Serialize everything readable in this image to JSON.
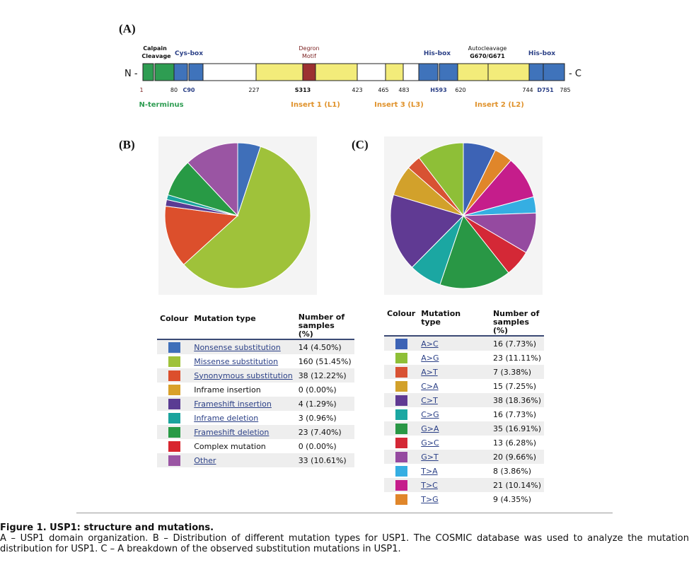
{
  "panels": {
    "a": "(A)",
    "b": "(B)",
    "c": "(C)"
  },
  "domain": {
    "n_label": "N -",
    "c_label": "- C",
    "top_labels": {
      "calpain_1": "Calpain",
      "calpain_2": "Cleavage",
      "cysbox": "Cys-box",
      "degron_1": "Degron",
      "degron_2": "Motif",
      "hisbox_1": "His-box",
      "autocleavage_1": "Autocleavage",
      "autocleavage_2": "G670/G671",
      "hisbox_2": "His-box"
    },
    "positions": [
      "1",
      "80",
      "C90",
      "227",
      "S313",
      "423",
      "465",
      "483",
      "H593",
      "620",
      "744",
      "D751",
      "785"
    ],
    "regions": {
      "n_terminus": "N-terminus",
      "insert1": "Insert 1 (L1)",
      "insert3": "Insert 3 (L3)",
      "insert2": "Insert 2 (L2)"
    },
    "colors": {
      "green": "#2e9d52",
      "blue": "#3f73bb",
      "yellow": "#f3ec7a",
      "degron": "#9c3131",
      "blue_label": "#2a3f86",
      "orange_label": "#e0922b",
      "green_label": "#2e9d52",
      "maroon_label": "#7a1f1f"
    }
  },
  "table_b": {
    "headers": {
      "colour": "Colour",
      "type": "Mutation type",
      "num_1": "Number of",
      "num_2": "samples (%)"
    },
    "rows": [
      {
        "color": "#3f6fb9",
        "label": "Nonsense substitution",
        "value": "14 (4.50%)",
        "link": true
      },
      {
        "color": "#9fc23a",
        "label": "Missense substitution",
        "value": "160 (51.45%)",
        "link": true
      },
      {
        "color": "#dc4f2c",
        "label": "Synonymous substitution",
        "value": "38 (12.22%)",
        "link": true
      },
      {
        "color": "#d9a12a",
        "label": "Inframe insertion",
        "value": "0 (0.00%)",
        "link": false
      },
      {
        "color": "#5a3c93",
        "label": "Frameshift insertion",
        "value": "4 (1.29%)",
        "link": true
      },
      {
        "color": "#1aa39d",
        "label": "Inframe deletion",
        "value": "3 (0.96%)",
        "link": true
      },
      {
        "color": "#289a45",
        "label": "Frameshift deletion",
        "value": "23 (7.40%)",
        "link": true
      },
      {
        "color": "#d8262f",
        "label": "Complex mutation",
        "value": "0 (0.00%)",
        "link": false
      },
      {
        "color": "#9a55a3",
        "label": "Other",
        "value": "33 (10.61%)",
        "link": true
      }
    ]
  },
  "table_c": {
    "headers": {
      "colour": "Colour",
      "type_1": "Mutation",
      "type_2": "type",
      "num_1": "Number of",
      "num_2": "samples (%)"
    },
    "rows": [
      {
        "color": "#3d63b5",
        "label": "A>C",
        "value": "16 (7.73%)"
      },
      {
        "color": "#8ebf37",
        "label": "A>G",
        "value": "23 (11.11%)"
      },
      {
        "color": "#d85233",
        "label": "A>T",
        "value": "7 (3.38%)"
      },
      {
        "color": "#d2a12b",
        "label": "C>A",
        "value": "15 (7.25%)"
      },
      {
        "color": "#603a93",
        "label": "C>T",
        "value": "38 (18.36%)"
      },
      {
        "color": "#1ba7a2",
        "label": "C>G",
        "value": "16 (7.73%)"
      },
      {
        "color": "#299745",
        "label": "G>A",
        "value": "35 (16.91%)"
      },
      {
        "color": "#d42836",
        "label": "G>C",
        "value": "13 (6.28%)"
      },
      {
        "color": "#954aa0",
        "label": "G>T",
        "value": "20 (9.66%)"
      },
      {
        "color": "#35aee2",
        "label": "T>A",
        "value": "8 (3.86%)"
      },
      {
        "color": "#c51d8b",
        "label": "T>C",
        "value": "21 (10.14%)"
      },
      {
        "color": "#e0862a",
        "label": "T>G",
        "value": "9 (4.35%)"
      }
    ]
  },
  "chart_data": [
    {
      "type": "pie",
      "start_angle_deg": 90,
      "slices": [
        {
          "label": "Nonsense substitution",
          "value": 4.5,
          "color": "#3f6fb9"
        },
        {
          "label": "Missense substitution",
          "value": 51.45,
          "color": "#9fc23a"
        },
        {
          "label": "Synonymous substitution",
          "value": 12.22,
          "color": "#dc4f2c"
        },
        {
          "label": "Inframe insertion",
          "value": 0.0,
          "color": "#d9a12a"
        },
        {
          "label": "Frameshift insertion",
          "value": 1.29,
          "color": "#5a3c93"
        },
        {
          "label": "Inframe deletion",
          "value": 0.96,
          "color": "#1aa39d"
        },
        {
          "label": "Frameshift deletion",
          "value": 7.4,
          "color": "#289a45"
        },
        {
          "label": "Complex mutation",
          "value": 0.0,
          "color": "#d8262f"
        },
        {
          "label": "Other",
          "value": 10.61,
          "color": "#9a55a3"
        }
      ]
    },
    {
      "type": "pie",
      "start_angle_deg": 90,
      "slices": [
        {
          "label": "A>C",
          "value": 7.73,
          "color": "#3d63b5"
        },
        {
          "label": "T>G",
          "value": 4.35,
          "color": "#e0862a"
        },
        {
          "label": "T>C",
          "value": 10.14,
          "color": "#c51d8b"
        },
        {
          "label": "T>A",
          "value": 3.86,
          "color": "#35aee2"
        },
        {
          "label": "G>T",
          "value": 9.66,
          "color": "#954aa0"
        },
        {
          "label": "G>C",
          "value": 6.28,
          "color": "#d42836"
        },
        {
          "label": "G>A",
          "value": 16.91,
          "color": "#299745"
        },
        {
          "label": "C>G",
          "value": 7.73,
          "color": "#1ba7a2"
        },
        {
          "label": "C>T",
          "value": 18.36,
          "color": "#603a93"
        },
        {
          "label": "C>A",
          "value": 7.25,
          "color": "#d2a12b"
        },
        {
          "label": "A>T",
          "value": 3.38,
          "color": "#d85233"
        },
        {
          "label": "A>G",
          "value": 11.11,
          "color": "#8ebf37"
        }
      ]
    }
  ],
  "caption": {
    "title": "Figure 1. USP1: structure and mutations.",
    "body": "A – USP1 domain organization. B – Distribution of different mutation types for USP1. The COSMIC database was used to analyze the mutation distribution for USP1. C – A breakdown of the observed substitution mutations in USP1."
  }
}
